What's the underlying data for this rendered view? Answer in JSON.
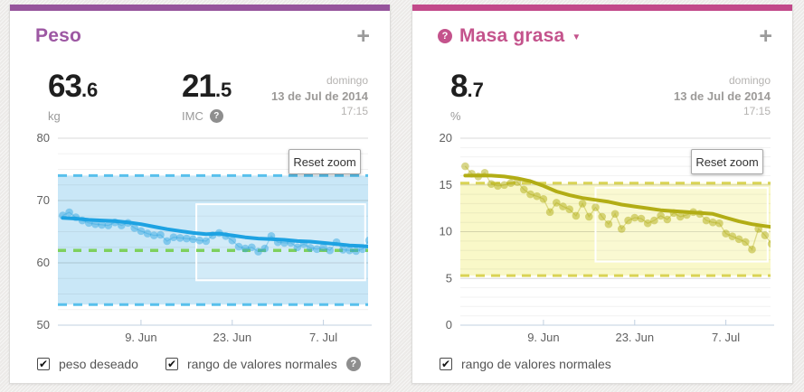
{
  "icons": {
    "add": "+",
    "help": "?",
    "caret": "▼",
    "check": "✔"
  },
  "panels": [
    {
      "title": "Peso",
      "accent_bar_color": "#96549c",
      "title_color": "#9d58a3",
      "stats": [
        {
          "value": "63",
          "decimal": ".6",
          "unit": "kg"
        },
        {
          "value": "21",
          "decimal": ".5",
          "unit": "IMC"
        }
      ],
      "timestamp": {
        "weekday": "domingo",
        "date": "13 de Jul de 2014",
        "time": "17:15"
      },
      "reset_zoom": "Reset zoom",
      "legend": [
        {
          "label": "peso deseado",
          "checked": true
        },
        {
          "label": "rango de valores normales",
          "checked": true
        }
      ],
      "chart_data": {
        "type": "scatter",
        "x_unit": "days since 28 May 2014",
        "xlim": [
          -0.75,
          46.85
        ],
        "ylim": [
          50,
          80
        ],
        "y_ticks": [
          50,
          60,
          70,
          80
        ],
        "y_minor_step": 2.5,
        "x_ticks": [
          {
            "day": 12,
            "label": "9. Jun"
          },
          {
            "day": 26,
            "label": "23. Jun"
          },
          {
            "day": 40,
            "label": "7. Jul"
          }
        ],
        "normal_range": {
          "from": 53.3,
          "to": 74
        },
        "goal_line": 62,
        "zoom_selection": {
          "day_from": 20.5,
          "day_to": 46.4,
          "val_from": 57.2,
          "val_to": 69.4
        },
        "points": [
          [
            0,
            67.6
          ],
          [
            1,
            68.1
          ],
          [
            2,
            67.3
          ],
          [
            3,
            66.8
          ],
          [
            4,
            66.4
          ],
          [
            5,
            66.2
          ],
          [
            6,
            66.1
          ],
          [
            7,
            66.0
          ],
          [
            8,
            66.5
          ],
          [
            9,
            66.0
          ],
          [
            10,
            66.4
          ],
          [
            11,
            65.6
          ],
          [
            12,
            65.1
          ],
          [
            13,
            64.7
          ],
          [
            14,
            64.4
          ],
          [
            15,
            64.5
          ],
          [
            16,
            63.5
          ],
          [
            17,
            64.1
          ],
          [
            18,
            64.0
          ],
          [
            19,
            63.9
          ],
          [
            20,
            63.8
          ],
          [
            21,
            63.6
          ],
          [
            22,
            63.5
          ],
          [
            23,
            64.4
          ],
          [
            24,
            64.8
          ],
          [
            25,
            64.3
          ],
          [
            26,
            63.6
          ],
          [
            27,
            62.6
          ],
          [
            28,
            62.3
          ],
          [
            29,
            62.5
          ],
          [
            30,
            61.8
          ],
          [
            31,
            62.3
          ],
          [
            32,
            64.3
          ],
          [
            33,
            63.3
          ],
          [
            34,
            63.2
          ],
          [
            35,
            63.2
          ],
          [
            36,
            62.5
          ],
          [
            37,
            63.0
          ],
          [
            38,
            62.4
          ],
          [
            39,
            62.2
          ],
          [
            40,
            62.5
          ],
          [
            41,
            62.0
          ],
          [
            42,
            63.3
          ],
          [
            43,
            62.1
          ],
          [
            44,
            62.0
          ],
          [
            45,
            61.9
          ],
          [
            46,
            62.2
          ],
          [
            47,
            63.6
          ]
        ],
        "trend": [
          [
            0,
            67.2
          ],
          [
            2,
            67.1
          ],
          [
            4,
            66.9
          ],
          [
            6,
            66.8
          ],
          [
            8,
            66.7
          ],
          [
            10,
            66.5
          ],
          [
            12,
            66.2
          ],
          [
            14,
            65.8
          ],
          [
            16,
            65.4
          ],
          [
            18,
            65.1
          ],
          [
            20,
            64.8
          ],
          [
            22,
            64.6
          ],
          [
            24,
            64.7
          ],
          [
            26,
            64.4
          ],
          [
            28,
            64.1
          ],
          [
            30,
            63.9
          ],
          [
            32,
            63.8
          ],
          [
            34,
            63.7
          ],
          [
            36,
            63.5
          ],
          [
            38,
            63.4
          ],
          [
            40,
            63.2
          ],
          [
            42,
            63.0
          ],
          [
            44,
            62.8
          ],
          [
            46,
            62.7
          ],
          [
            47,
            62.6
          ]
        ],
        "colors": {
          "trend": "#1da2e2",
          "point": "rgba(41,162,224,0.45)",
          "connector": "rgba(41,162,224,0.35)",
          "band_fill": "#c9e7f7",
          "band_edge": "#58c0ec",
          "goal": "#7ed05e"
        }
      }
    },
    {
      "title": "Masa grasa",
      "accent_bar_color": "#c2498a",
      "title_color": "#c4538c",
      "stats": [
        {
          "value": "8",
          "decimal": ".7",
          "unit": "%"
        }
      ],
      "timestamp": {
        "weekday": "domingo",
        "date": "13 de Jul de 2014",
        "time": "17:15"
      },
      "reset_zoom": "Reset zoom",
      "legend": [
        {
          "label": "rango de valores normales",
          "checked": true
        }
      ],
      "chart_data": {
        "type": "scatter",
        "x_unit": "days since 28 May 2014",
        "xlim": [
          -0.75,
          46.85
        ],
        "ylim": [
          0,
          20
        ],
        "y_ticks": [
          0,
          5,
          10,
          15,
          20
        ],
        "y_minor_step": 1,
        "x_ticks": [
          {
            "day": 12,
            "label": "9. Jun"
          },
          {
            "day": 26,
            "label": "23. Jun"
          },
          {
            "day": 40,
            "label": "7. Jul"
          }
        ],
        "normal_range": {
          "from": 5.3,
          "to": 15.2
        },
        "goal_line": null,
        "zoom_selection": {
          "day_from": 20.0,
          "day_to": 46.4,
          "val_from": 6.8,
          "val_to": 14.7
        },
        "points": [
          [
            0,
            17.0
          ],
          [
            1,
            16.2
          ],
          [
            2,
            15.9
          ],
          [
            3,
            16.3
          ],
          [
            4,
            15.1
          ],
          [
            5,
            14.9
          ],
          [
            6,
            15.0
          ],
          [
            7,
            15.2
          ],
          [
            8,
            15.3
          ],
          [
            9,
            14.5
          ],
          [
            10,
            14.0
          ],
          [
            11,
            13.8
          ],
          [
            12,
            13.5
          ],
          [
            13,
            12.1
          ],
          [
            14,
            13.1
          ],
          [
            15,
            12.7
          ],
          [
            16,
            12.4
          ],
          [
            17,
            11.7
          ],
          [
            18,
            13.0
          ],
          [
            19,
            11.6
          ],
          [
            20,
            12.6
          ],
          [
            21,
            11.6
          ],
          [
            22,
            10.8
          ],
          [
            23,
            11.9
          ],
          [
            24,
            10.3
          ],
          [
            25,
            11.2
          ],
          [
            26,
            11.5
          ],
          [
            27,
            11.4
          ],
          [
            28,
            10.9
          ],
          [
            29,
            11.2
          ],
          [
            30,
            11.7
          ],
          [
            31,
            11.3
          ],
          [
            32,
            12.0
          ],
          [
            33,
            11.6
          ],
          [
            34,
            11.8
          ],
          [
            35,
            12.1
          ],
          [
            36,
            11.9
          ],
          [
            37,
            11.2
          ],
          [
            38,
            11.0
          ],
          [
            39,
            10.9
          ],
          [
            40,
            9.8
          ],
          [
            41,
            9.5
          ],
          [
            42,
            9.2
          ],
          [
            43,
            8.9
          ],
          [
            44,
            8.1
          ],
          [
            45,
            10.3
          ],
          [
            46,
            9.6
          ],
          [
            47,
            8.7
          ]
        ],
        "trend": [
          [
            0,
            16.0
          ],
          [
            2,
            16.0
          ],
          [
            4,
            16.0
          ],
          [
            6,
            15.9
          ],
          [
            8,
            15.7
          ],
          [
            10,
            15.4
          ],
          [
            12,
            14.9
          ],
          [
            14,
            14.3
          ],
          [
            16,
            13.9
          ],
          [
            18,
            13.6
          ],
          [
            20,
            13.4
          ],
          [
            22,
            13.2
          ],
          [
            24,
            12.9
          ],
          [
            26,
            12.7
          ],
          [
            28,
            12.5
          ],
          [
            30,
            12.3
          ],
          [
            32,
            12.2
          ],
          [
            34,
            12.1
          ],
          [
            36,
            12.0
          ],
          [
            38,
            11.9
          ],
          [
            40,
            11.5
          ],
          [
            42,
            11.1
          ],
          [
            44,
            10.8
          ],
          [
            46,
            10.6
          ],
          [
            47,
            10.5
          ]
        ],
        "colors": {
          "trend": "#b2ad15",
          "point": "rgba(178,173,21,0.5)",
          "connector": "rgba(178,173,21,0.4)",
          "band_fill": "#f9f8c8",
          "band_edge": "#d9d355",
          "goal": null
        }
      }
    }
  ]
}
